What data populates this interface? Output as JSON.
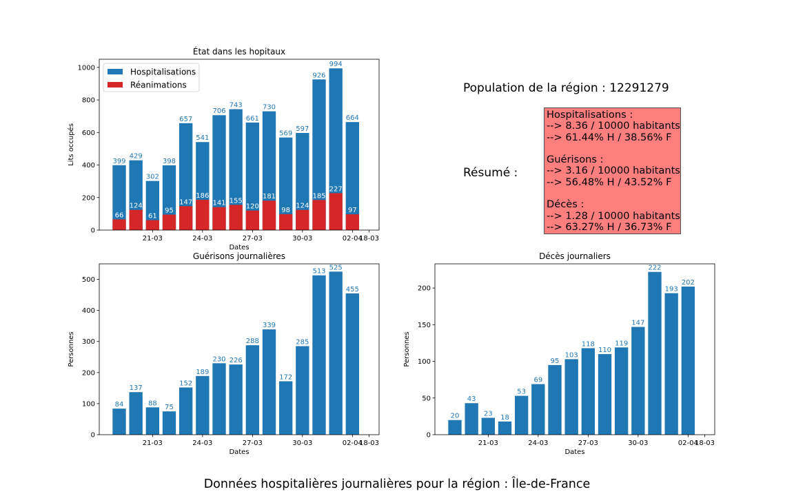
{
  "figure": {
    "title": "Données hospitalières journalières pour la région : Île-de-France"
  },
  "summary": {
    "population_text": "Population de la région : 12291279",
    "resume_label": "Résumé :",
    "blocks": [
      {
        "heading": "Hospitalisations :",
        "rate": "--> 8.36 / 10000 habitants",
        "split": "--> 61.44% H / 38.56% F"
      },
      {
        "heading": "Guérisons :",
        "rate": "--> 3.16 / 10000 habitants",
        "split": "--> 56.48% H / 43.52% F"
      },
      {
        "heading": "Décès :",
        "rate": "--> 1.28 / 10000 habitants",
        "split": "--> 63.27% H / 36.73% F"
      }
    ],
    "box_color": "#ff7f7f"
  },
  "chart_data": [
    {
      "id": "etat",
      "type": "bar",
      "title": "État dans les hopitaux",
      "xlabel": "Dates",
      "ylabel": "Lits occupés",
      "ylim": [
        0,
        1050
      ],
      "yticks": [
        0,
        200,
        400,
        600,
        800,
        1000
      ],
      "xlim": [
        -1.2,
        15.6
      ],
      "xticks": [
        {
          "x": 2,
          "label": "21-03"
        },
        {
          "x": 5,
          "label": "24-03"
        },
        {
          "x": 8,
          "label": "27-03"
        },
        {
          "x": 11,
          "label": "30-03"
        },
        {
          "x": 14,
          "label": "02-04"
        },
        {
          "x": 15,
          "label": "18-03"
        }
      ],
      "grid": false,
      "legend": "top-left",
      "series": [
        {
          "name": "Hospitalisations",
          "color": "#1f77b4",
          "label_color": "#1f77b4",
          "label_position": "above",
          "values": [
            399,
            429,
            302,
            398,
            657,
            541,
            706,
            743,
            661,
            730,
            569,
            597,
            926,
            994,
            664
          ]
        },
        {
          "name": "Réanimations",
          "color": "#d62728",
          "label_color": "#ffffff",
          "label_position": "above",
          "values": [
            66,
            124,
            61,
            95,
            147,
            186,
            141,
            155,
            120,
            181,
            98,
            124,
            185,
            227,
            97
          ]
        }
      ]
    },
    {
      "id": "guerisons",
      "type": "bar",
      "title": "Guérisons journalières",
      "xlabel": "Dates",
      "ylabel": "Personnes",
      "ylim": [
        0,
        550
      ],
      "yticks": [
        0,
        100,
        200,
        300,
        400,
        500
      ],
      "xlim": [
        -1.2,
        15.6
      ],
      "xticks": [
        {
          "x": 2,
          "label": "21-03"
        },
        {
          "x": 5,
          "label": "24-03"
        },
        {
          "x": 8,
          "label": "27-03"
        },
        {
          "x": 11,
          "label": "30-03"
        },
        {
          "x": 14,
          "label": "02-04"
        },
        {
          "x": 15,
          "label": "18-03"
        }
      ],
      "grid": false,
      "series": [
        {
          "color": "#1f77b4",
          "label_color": "#1f77b4",
          "label_position": "above",
          "values": [
            84,
            137,
            88,
            75,
            152,
            189,
            230,
            226,
            288,
            339,
            172,
            285,
            513,
            525,
            455
          ]
        }
      ]
    },
    {
      "id": "deces",
      "type": "bar",
      "title": "Décès journaliers",
      "xlabel": "Dates",
      "ylabel": "Personnes",
      "ylim": [
        0,
        233
      ],
      "yticks": [
        0,
        50,
        100,
        150,
        200
      ],
      "xlim": [
        -1.2,
        15.6
      ],
      "xticks": [
        {
          "x": 2,
          "label": "21-03"
        },
        {
          "x": 5,
          "label": "24-03"
        },
        {
          "x": 8,
          "label": "27-03"
        },
        {
          "x": 11,
          "label": "30-03"
        },
        {
          "x": 14,
          "label": "02-04"
        },
        {
          "x": 15,
          "label": "18-03"
        }
      ],
      "grid": false,
      "series": [
        {
          "color": "#1f77b4",
          "label_color": "#1f77b4",
          "label_position": "above",
          "values": [
            20,
            43,
            23,
            18,
            53,
            69,
            95,
            103,
            118,
            110,
            119,
            147,
            222,
            193,
            202
          ]
        }
      ]
    }
  ]
}
